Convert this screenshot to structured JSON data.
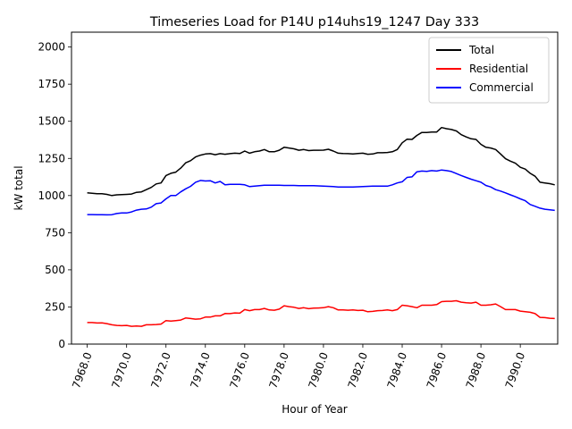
{
  "chart_data": {
    "type": "line",
    "title": "Timeseries Load for P14U p14uhs19_1247  Day 333",
    "xlabel": "Hour of Year",
    "ylabel": "kW total",
    "xlim": [
      7967.2,
      7991.9
    ],
    "ylim": [
      0,
      2100
    ],
    "x_ticks": [
      7968,
      7970,
      7972,
      7974,
      7976,
      7978,
      7980,
      7982,
      7984,
      7986,
      7988,
      7990
    ],
    "x_tick_labels": [
      "7968.0",
      "7970.0",
      "7972.0",
      "7974.0",
      "7976.0",
      "7978.0",
      "7980.0",
      "7982.0",
      "7984.0",
      "7986.0",
      "7988.0",
      "7990.0"
    ],
    "y_ticks": [
      0,
      250,
      500,
      750,
      1000,
      1250,
      1500,
      1750,
      2000
    ],
    "y_tick_labels": [
      "0",
      "250",
      "500",
      "750",
      "1000",
      "1250",
      "1500",
      "1750",
      "2000"
    ],
    "legend_position": "top-right",
    "x": [
      7968.0,
      7968.25,
      7968.5,
      7968.75,
      7969.0,
      7969.25,
      7969.5,
      7969.75,
      7970.0,
      7970.25,
      7970.5,
      7970.75,
      7971.0,
      7971.25,
      7971.5,
      7971.75,
      7972.0,
      7972.25,
      7972.5,
      7972.75,
      7973.0,
      7973.25,
      7973.5,
      7973.75,
      7974.0,
      7974.25,
      7974.5,
      7974.75,
      7975.0,
      7975.25,
      7975.5,
      7975.75,
      7976.0,
      7976.25,
      7976.5,
      7976.75,
      7977.0,
      7977.25,
      7977.5,
      7977.75,
      7978.0,
      7978.25,
      7978.5,
      7978.75,
      7979.0,
      7979.25,
      7979.5,
      7979.75,
      7980.0,
      7980.25,
      7980.5,
      7980.75,
      7981.0,
      7981.25,
      7981.5,
      7981.75,
      7982.0,
      7982.25,
      7982.5,
      7982.75,
      7983.0,
      7983.25,
      7983.5,
      7983.75,
      7984.0,
      7984.25,
      7984.5,
      7984.75,
      7985.0,
      7985.25,
      7985.5,
      7985.75,
      7986.0,
      7986.25,
      7986.5,
      7986.75,
      7987.0,
      7987.25,
      7987.5,
      7987.75,
      7988.0,
      7988.25,
      7988.5,
      7988.75,
      7989.0,
      7989.25,
      7989.5,
      7989.75,
      7990.0,
      7990.25,
      7990.5,
      7990.75,
      7991.0,
      7991.25,
      7991.5,
      7991.75
    ],
    "series": [
      {
        "name": "Total",
        "color": "#000000",
        "values": [
          1018,
          1015,
          1012,
          1012,
          1008,
          1000,
          1005,
          1006,
          1008,
          1010,
          1022,
          1025,
          1040,
          1055,
          1078,
          1085,
          1135,
          1150,
          1158,
          1185,
          1220,
          1235,
          1260,
          1272,
          1280,
          1282,
          1275,
          1282,
          1278,
          1282,
          1285,
          1283,
          1300,
          1285,
          1295,
          1300,
          1310,
          1295,
          1295,
          1305,
          1325,
          1320,
          1315,
          1305,
          1310,
          1303,
          1305,
          1305,
          1306,
          1312,
          1300,
          1285,
          1283,
          1282,
          1280,
          1283,
          1285,
          1278,
          1280,
          1288,
          1288,
          1290,
          1295,
          1310,
          1355,
          1380,
          1378,
          1405,
          1425,
          1425,
          1428,
          1428,
          1458,
          1450,
          1445,
          1435,
          1410,
          1395,
          1382,
          1378,
          1345,
          1325,
          1320,
          1310,
          1280,
          1248,
          1232,
          1218,
          1190,
          1178,
          1150,
          1130,
          1090,
          1085,
          1080,
          1072
        ]
      },
      {
        "name": "Residential",
        "color": "#ff0000",
        "values": [
          145,
          145,
          142,
          143,
          138,
          130,
          126,
          124,
          126,
          120,
          122,
          120,
          130,
          130,
          132,
          135,
          158,
          155,
          158,
          162,
          176,
          172,
          168,
          170,
          182,
          182,
          190,
          190,
          206,
          205,
          210,
          208,
          232,
          225,
          232,
          232,
          240,
          230,
          228,
          235,
          258,
          252,
          248,
          240,
          245,
          238,
          242,
          243,
          245,
          252,
          245,
          230,
          230,
          228,
          230,
          226,
          228,
          218,
          220,
          225,
          226,
          230,
          225,
          232,
          262,
          258,
          252,
          245,
          262,
          262,
          262,
          266,
          286,
          288,
          288,
          292,
          282,
          278,
          276,
          282,
          262,
          262,
          265,
          270,
          252,
          232,
          232,
          232,
          222,
          218,
          214,
          205,
          180,
          178,
          174,
          172
        ]
      },
      {
        "name": "Commercial",
        "color": "#0000ff",
        "values": [
          872,
          872,
          871,
          871,
          870,
          871,
          879,
          883,
          883,
          890,
          902,
          908,
          910,
          922,
          945,
          950,
          978,
          1000,
          1000,
          1025,
          1045,
          1062,
          1090,
          1102,
          1098,
          1100,
          1085,
          1095,
          1072,
          1076,
          1076,
          1075,
          1072,
          1060,
          1063,
          1066,
          1070,
          1070,
          1070,
          1070,
          1068,
          1068,
          1068,
          1067,
          1067,
          1066,
          1066,
          1065,
          1064,
          1062,
          1060,
          1058,
          1057,
          1058,
          1058,
          1059,
          1061,
          1062,
          1063,
          1064,
          1064,
          1063,
          1072,
          1085,
          1093,
          1122,
          1126,
          1160,
          1165,
          1163,
          1168,
          1165,
          1172,
          1168,
          1162,
          1148,
          1135,
          1122,
          1110,
          1100,
          1090,
          1068,
          1058,
          1040,
          1030,
          1018,
          1005,
          992,
          978,
          965,
          940,
          928,
          915,
          908,
          904,
          900
        ]
      }
    ]
  }
}
